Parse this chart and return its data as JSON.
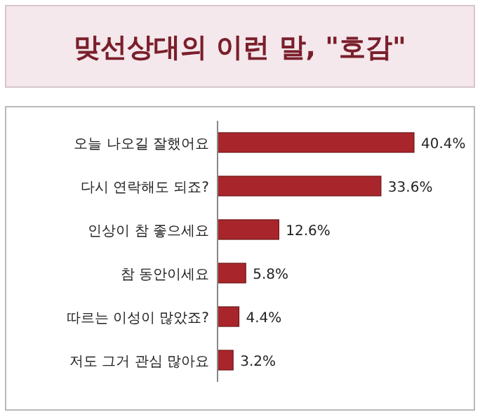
{
  "chart_data": {
    "type": "bar",
    "orientation": "horizontal",
    "title": "맞선상대의 이런 말, \"호감\"",
    "categories": [
      "오늘 나오길 잘했어요",
      "다시 연락해도 되죠?",
      "인상이 참 좋으세요",
      "참 동안이세요",
      "따르는 이성이 많았죠?",
      "저도 그거 관심 많아요"
    ],
    "values": [
      40.4,
      33.6,
      12.6,
      5.8,
      4.4,
      3.2
    ],
    "value_labels": [
      "40.4%",
      "33.6%",
      "12.6%",
      "5.8%",
      "4.4%",
      "3.2%"
    ],
    "color": "#a8262b"
  }
}
